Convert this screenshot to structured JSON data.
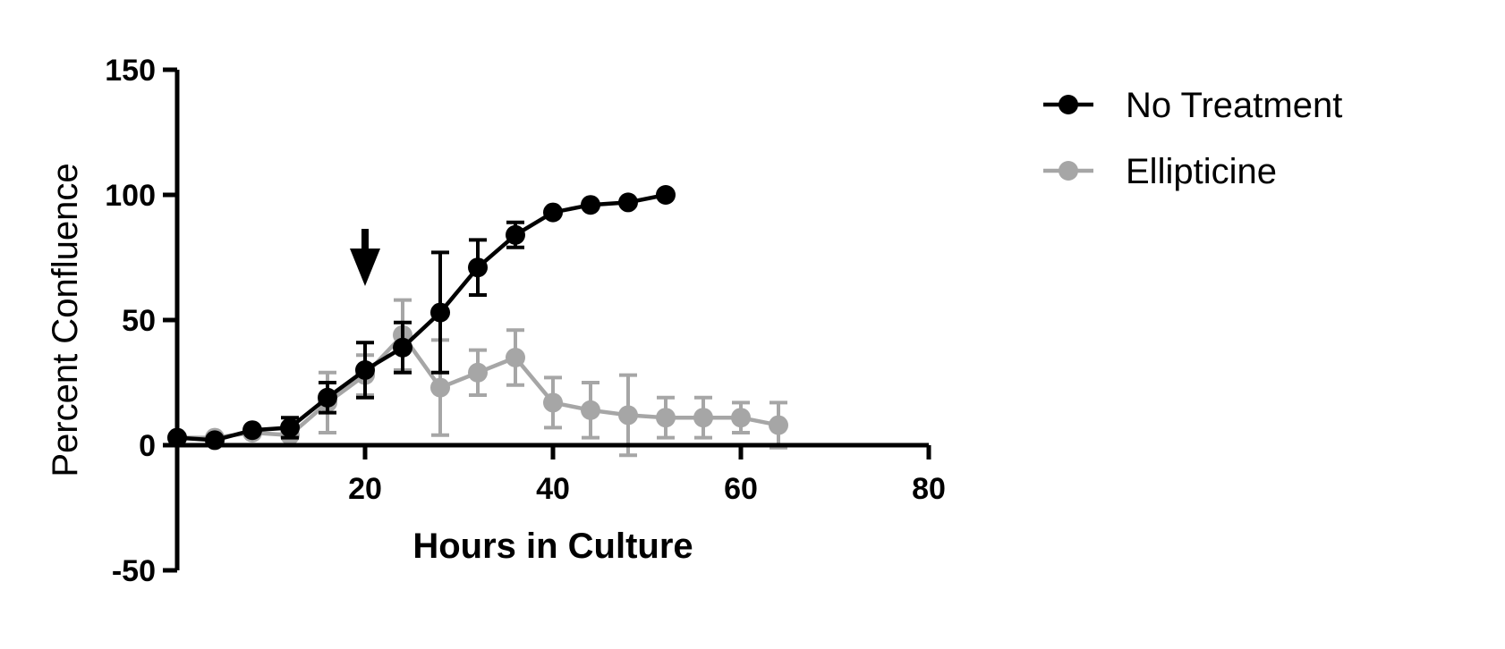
{
  "chart_data": {
    "type": "line",
    "title": "",
    "xlabel": "Hours in Culture",
    "ylabel": "Percent Confluence",
    "xlim": [
      0,
      80
    ],
    "ylim": [
      -50,
      150
    ],
    "xticks": [
      20,
      40,
      60,
      80
    ],
    "yticks": [
      -50,
      0,
      50,
      100,
      150
    ],
    "grid": false,
    "legend_position": "top-right",
    "annotations": [
      {
        "type": "arrow-down",
        "x": 20,
        "y": 65
      }
    ],
    "series": [
      {
        "name": "No Treatment",
        "color": "#000000",
        "x": [
          0,
          4,
          8,
          12,
          16,
          20,
          24,
          28,
          32,
          36,
          40,
          44,
          48,
          52
        ],
        "y": [
          3,
          2,
          6,
          7,
          19,
          30,
          39,
          53,
          71,
          84,
          93,
          96,
          97,
          100
        ],
        "error": [
          0,
          0,
          0,
          4,
          6,
          11,
          10,
          24,
          11,
          5,
          0,
          0,
          0,
          0
        ]
      },
      {
        "name": "Ellipticine",
        "color": "#A6A6A6",
        "x": [
          0,
          4,
          8,
          12,
          16,
          20,
          24,
          28,
          32,
          36,
          40,
          44,
          48,
          52,
          56,
          60,
          64
        ],
        "y": [
          3,
          3,
          5,
          4,
          17,
          28,
          44,
          23,
          29,
          35,
          17,
          14,
          12,
          11,
          11,
          11,
          8
        ],
        "error": [
          0,
          0,
          0,
          4,
          12,
          8,
          14,
          19,
          9,
          11,
          10,
          11,
          16,
          8,
          8,
          6,
          9
        ]
      }
    ]
  }
}
